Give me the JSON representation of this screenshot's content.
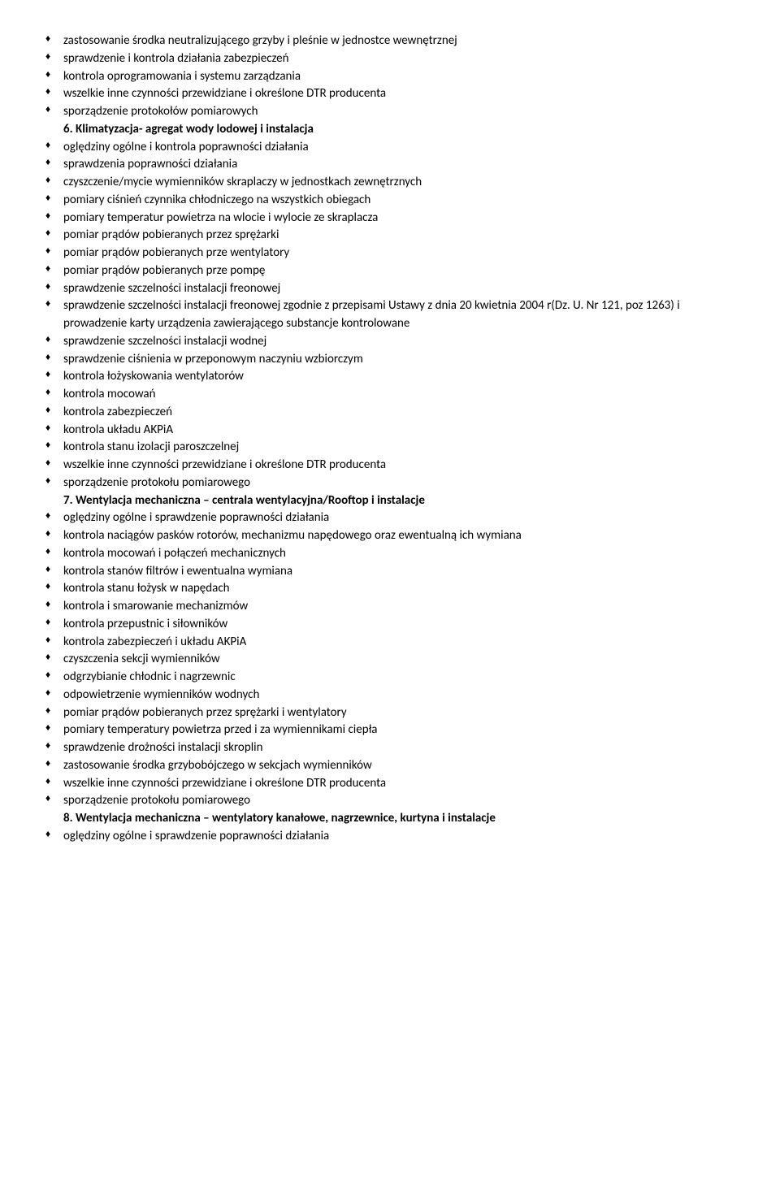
{
  "block1": {
    "items": [
      "zastosowanie środka neutralizującego grzyby i pleśnie w jednostce wewnętrznej",
      "sprawdzenie i kontrola działania zabezpieczeń",
      "kontrola oprogramowania i systemu zarządzania",
      "wszelkie inne czynności przewidziane i określone DTR producenta",
      "sporządzenie protokołów pomiarowych"
    ]
  },
  "heading6": "6. Klimatyzacja- agregat wody lodowej i instalacja",
  "block2": {
    "items": [
      "oględziny ogólne i kontrola poprawności działania",
      "sprawdzenia poprawności działania",
      "czyszczenie/mycie wymienników skraplaczy w jednostkach zewnętrznych",
      "pomiary ciśnień czynnika chłodniczego na wszystkich obiegach",
      "pomiary temperatur powietrza na wlocie i wylocie ze skraplacza",
      "pomiar prądów pobieranych przez sprężarki",
      "pomiar prądów pobieranych prze wentylatory",
      "pomiar prądów pobieranych prze pompę",
      "sprawdzenie szczelności instalacji freonowej",
      "sprawdzenie szczelności  instalacji freonowej zgodnie z przepisami Ustawy z dnia 20 kwietnia 2004 r(Dz. U. Nr 121, poz 1263) i prowadzenie karty urządzenia zawierającego substancje kontrolowane",
      "sprawdzenie szczelności instalacji wodnej",
      "sprawdzenie ciśnienia w przeponowym naczyniu wzbiorczym",
      "kontrola łożyskowania wentylatorów",
      "kontrola mocowań",
      "kontrola zabezpieczeń",
      "kontrola układu AKPiA",
      "kontrola stanu izolacji paroszczelnej",
      "wszelkie inne czynności przewidziane i określone DTR producenta",
      "sporządzenie protokołu pomiarowego"
    ]
  },
  "heading7": "7. Wentylacja mechaniczna – centrala wentylacyjna/Rooftop i instalacje",
  "block3": {
    "items": [
      "oględziny ogólne i sprawdzenie poprawności działania",
      "kontrola naciągów pasków rotorów, mechanizmu napędowego oraz ewentualną ich wymiana",
      "kontrola mocowań i połączeń mechanicznych",
      "kontrola stanów filtrów i ewentualna wymiana",
      "kontrola stanu łożysk w napędach",
      "kontrola i smarowanie mechanizmów",
      "kontrola przepustnic i siłowników",
      "kontrola zabezpieczeń i układu AKPiA",
      "czyszczenia sekcji wymienników",
      "odgrzybianie chłodnic i nagrzewnic",
      "odpowietrzenie wymienników wodnych",
      "pomiar prądów pobieranych przez sprężarki i wentylatory",
      "pomiary temperatury powietrza przed i za wymiennikami ciepła",
      "sprawdzenie drożności instalacji skroplin",
      "zastosowanie środka grzybobójczego w sekcjach wymienników",
      "wszelkie inne czynności przewidziane i określone DTR producenta",
      "sporządzenie protokołu pomiarowego"
    ]
  },
  "heading8": "8. Wentylacja mechaniczna – wentylatory kanałowe, nagrzewnice, kurtyna i instalacje",
  "block4": {
    "items": [
      "oględziny ogólne i sprawdzenie poprawności działania"
    ]
  }
}
